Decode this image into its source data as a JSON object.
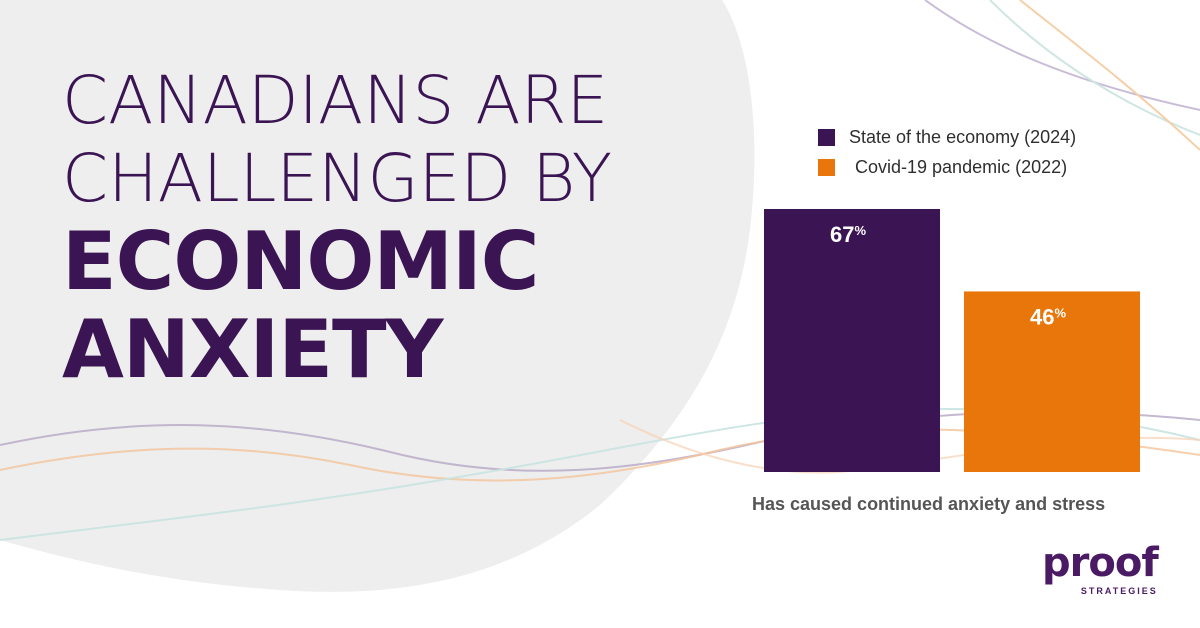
{
  "headline": {
    "line1": "CANADIANS ARE",
    "line2": "CHALLENGED BY",
    "line3": "ECONOMIC",
    "line4": "ANXIETY"
  },
  "colors": {
    "primary": "#3b1453",
    "accent": "#e8760a",
    "blob": "#eeeeee",
    "caption": "#555555"
  },
  "chart_data": {
    "type": "bar",
    "categories": [
      "Has caused continued anxiety and stress"
    ],
    "series": [
      {
        "name": "State of the economy (2024)",
        "values": [
          67
        ],
        "label": "67",
        "color": "#3b1453"
      },
      {
        "name": "Covid-19 pandemic (2022)",
        "values": [
          46
        ],
        "label": "46",
        "color": "#e8760a"
      }
    ],
    "value_suffix": "%",
    "xlabel": "Has caused continued anxiety and stress",
    "ylabel": "",
    "ylim": [
      0,
      67
    ],
    "legend": "top"
  },
  "logo": {
    "word": "proof",
    "sub": "STRATEGIES"
  }
}
